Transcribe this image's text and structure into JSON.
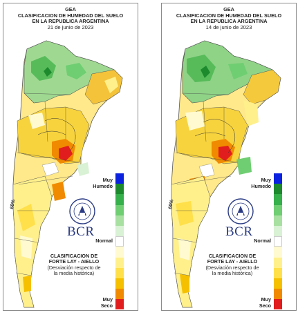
{
  "panels": [
    {
      "header": {
        "org": "GEA",
        "title_line1": "CLASIFICACION DE HUMEDAD DEL SUELO",
        "title_line2": "EN LA REPUBLICA ARGENTINA",
        "date": "21 de junio de 2023"
      },
      "legend": {
        "top_label_1": "Muy",
        "top_label_2": "Humedo",
        "mid_label": "Normal",
        "bottom_label_1": "Muy",
        "bottom_label_2": "Seco"
      },
      "brand": {
        "logo_text": "BCR",
        "emblem_text": "BOLSA DE COMERCIO DE ROSARIO"
      },
      "classification": {
        "title_line1": "CLASIFICACION DE",
        "title_line2": "FORTE LAY - AIELLO",
        "note_line1": "(Desviación respecto de",
        "note_line2": "la media histórica)"
      },
      "map_labels": [
        "60%"
      ],
      "regions": [
        "n_dry",
        "n_mid",
        "central",
        "south"
      ]
    },
    {
      "header": {
        "org": "GEA",
        "title_line1": "CLASIFICACION DE HUMEDAD DEL SUELO",
        "title_line2": "EN LA REPUBLICA ARGENTINA",
        "date": "14 de junio de 2023"
      },
      "legend": {
        "top_label_1": "Muy",
        "top_label_2": "Humedo",
        "mid_label": "Normal",
        "bottom_label_1": "Muy",
        "bottom_label_2": "Seco"
      },
      "brand": {
        "logo_text": "BCR",
        "emblem_text": "BOLSA DE COMERCIO DE ROSARIO"
      },
      "classification": {
        "title_line1": "CLASIFICACION DE",
        "title_line2": "FORTE LAY - AIELLO",
        "note_line1": "(Desviación respecto de",
        "note_line2": "la media histórica)"
      },
      "map_labels": [
        "60%"
      ],
      "regions": [
        "n_dry",
        "n_mid",
        "central",
        "south"
      ]
    }
  ],
  "legend_colors": [
    "#0b22e0",
    "#1d8a2e",
    "#35b04a",
    "#6fce72",
    "#a8e0a1",
    "#d9f1d4",
    "#ffffff",
    "#fffad0",
    "#fff08c",
    "#ffe04a",
    "#f5c000",
    "#f08a00",
    "#e21d1d"
  ]
}
